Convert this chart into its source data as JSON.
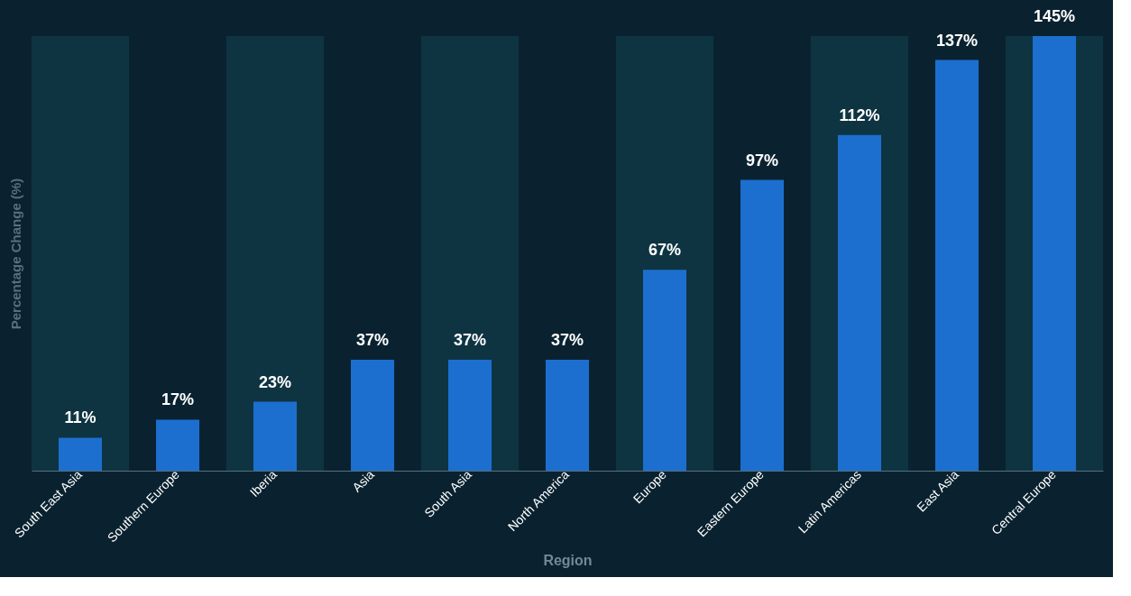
{
  "chart_data": {
    "type": "bar",
    "xlabel": "Region",
    "ylabel": "Percentage Change (%)",
    "categories": [
      "South East Asia",
      "Southern Europe",
      "Iberia",
      "Asia",
      "South Asia",
      "North America",
      "Europe",
      "Eastern Europe",
      "Latin Americas",
      "East Asia",
      "Central Europe"
    ],
    "values": [
      11,
      17,
      23,
      37,
      37,
      37,
      67,
      97,
      112,
      137,
      145
    ],
    "value_labels": [
      "11%",
      "17%",
      "23%",
      "37%",
      "37%",
      "37%",
      "67%",
      "97%",
      "112%",
      "137%",
      "145%"
    ],
    "color": "#1c6fcf",
    "bands": [
      {
        "axis": "x",
        "from": "South East Asia",
        "to": "South East Asia",
        "color": "#0e3442"
      },
      {
        "axis": "x",
        "from": "Iberia",
        "to": "Iberia",
        "color": "#0e3442"
      },
      {
        "axis": "x",
        "from": "South Asia",
        "to": "South Asia",
        "color": "#0e3442"
      },
      {
        "axis": "x",
        "from": "Europe",
        "to": "Europe",
        "color": "#0e3442"
      },
      {
        "axis": "x",
        "from": "Latin Americas",
        "to": "Latin Americas",
        "color": "#0e3442"
      },
      {
        "axis": "x",
        "from": "Central Europe",
        "to": "Central Europe",
        "color": "#0e3442"
      }
    ],
    "grid": false,
    "tick_labels": "x"
  }
}
